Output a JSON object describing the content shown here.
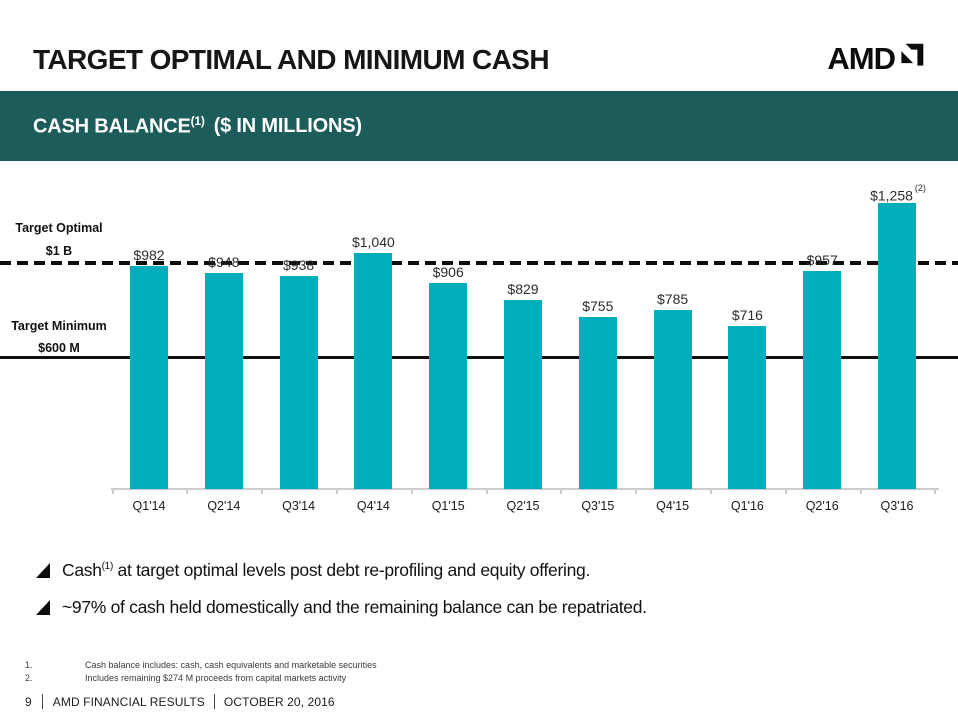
{
  "header": {
    "title": "TARGET OPTIMAL AND MINIMUM CASH",
    "logo_text": "AMD"
  },
  "banner": {
    "title": "CASH BALANCE",
    "title_sup": "(1)",
    "subtitle": "($ IN MILLIONS)"
  },
  "chart_data": {
    "type": "bar",
    "title": "CASH BALANCE ($ IN MILLIONS)",
    "categories": [
      "Q1'14",
      "Q2'14",
      "Q3'14",
      "Q4'14",
      "Q1'15",
      "Q2'15",
      "Q3'15",
      "Q4'15",
      "Q1'16",
      "Q2'16",
      "Q3'16"
    ],
    "values": [
      982,
      948,
      938,
      1040,
      906,
      829,
      755,
      785,
      716,
      957,
      1258
    ],
    "value_labels": [
      "$982",
      "$948",
      "$938",
      "$1,040",
      "$906",
      "$829",
      "$755",
      "$785",
      "$716",
      "$957",
      "$1,258"
    ],
    "last_value_sup": "(2)",
    "bar_color": "#00AEBB",
    "xlabel": "",
    "ylabel": "$ in millions",
    "ylim": [
      0,
      1350
    ],
    "grid": false,
    "legend": "none",
    "reference_lines": [
      {
        "label": "Target Optimal",
        "sublabel": "$1 B",
        "value": 1000,
        "style": "dashed"
      },
      {
        "label": "Target Minimum",
        "sublabel": "$600 M",
        "value": 600,
        "style": "solid"
      }
    ]
  },
  "bullets": [
    {
      "prefix": "Cash",
      "sup": "(1)",
      "text": " at target optimal levels post debt re-profiling and equity offering."
    },
    {
      "prefix": "",
      "sup": "",
      "text": "~97% of cash held domestically and the remaining balance can be repatriated."
    }
  ],
  "footnotes": [
    {
      "num": "1.",
      "text": "Cash balance includes: cash, cash equivalents and marketable securities"
    },
    {
      "num": "2.",
      "text": "Includes remaining $274 M proceeds from capital markets activity"
    }
  ],
  "footer": {
    "page": "9",
    "separator": "|",
    "title": "AMD FINANCIAL RESULTS",
    "date": "OCTOBER 20, 2016"
  },
  "colors": {
    "banner_teal": "#1C5C5A",
    "bar_teal": "#00AEBB",
    "line_black": "#101010",
    "axis_gray": "#CBCBCB"
  }
}
